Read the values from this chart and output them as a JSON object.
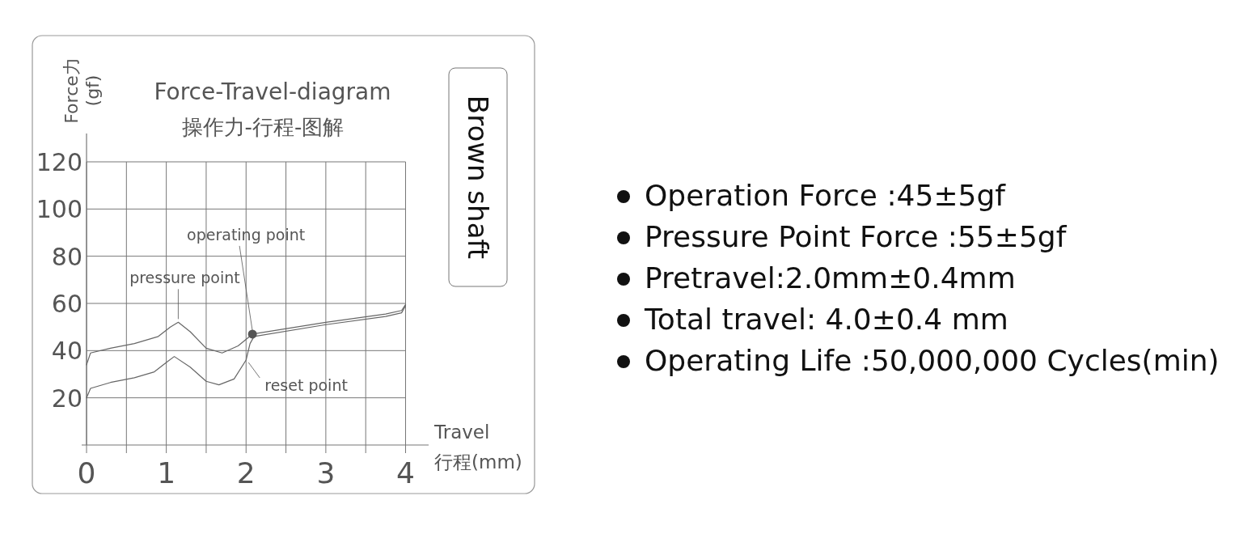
{
  "chart_data": {
    "type": "line",
    "title": "Force-Travel-diagram",
    "subtitle": "操作力-行程-图解",
    "xlabel": "Travel 行程(mm)",
    "ylabel": "Force力 (gf)",
    "xlim": [
      0,
      4
    ],
    "ylim": [
      0,
      120
    ],
    "xticks": [
      0,
      {
        "value": 0.5,
        "label": null
      },
      1,
      {
        "value": 1.5,
        "label": null
      },
      2,
      {
        "value": 2.5,
        "label": null
      },
      3,
      {
        "value": 3.5,
        "label": null
      },
      4
    ],
    "yticks": [
      20,
      40,
      60,
      80,
      100,
      120
    ],
    "grid": true,
    "series": [
      {
        "color": "#666666",
        "x": [
          0,
          0.05,
          0.3,
          0.6,
          0.9,
          1.05,
          1.15,
          1.3,
          1.5,
          1.7,
          1.9,
          2.08,
          3,
          3.75,
          3.95,
          4
        ],
        "values": [
          34,
          39,
          41,
          43,
          46,
          50,
          52,
          48,
          41,
          39,
          42,
          47,
          52,
          55.5,
          57,
          59.5
        ]
      },
      {
        "color": "#666666",
        "x": [
          0,
          0.05,
          0.3,
          0.6,
          0.85,
          1.0,
          1.1,
          1.3,
          1.5,
          1.66,
          1.85,
          2.0,
          2.05,
          2.1,
          3,
          3.75,
          3.95,
          4
        ],
        "values": [
          20,
          24,
          26.5,
          28.5,
          31,
          35,
          37.5,
          33,
          27,
          25.5,
          28,
          36,
          43,
          46,
          51,
          54.5,
          56,
          59
        ]
      },
      {
        "type": "scatter",
        "color": "#555555",
        "x": [
          2.08
        ],
        "values": [
          47
        ]
      }
    ],
    "annotations": [
      {
        "text": "pressure point",
        "x": 1.15,
        "y": 52
      },
      {
        "text": "operating point",
        "x": 2.08,
        "y": 47
      },
      {
        "text": "reset point",
        "x": 2.0,
        "y": 36
      },
      "Brown shaft",
      "Operation Force :45±5gf",
      "Pressure Point Force :55±5gf",
      "Pretravel:2.0mm±0.4mm",
      "Total travel: 4.0±0.4 mm",
      "Operating Life :50,000,000 Cycles(min)"
    ]
  }
}
